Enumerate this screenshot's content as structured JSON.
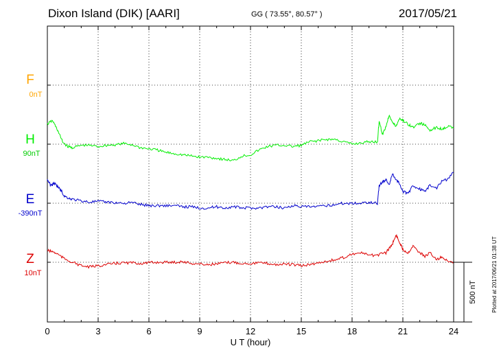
{
  "header": {
    "title": "Dixon Island (DIK)  [AARI]",
    "coords": "GG ( 73.55°,  80.57° )",
    "date": "2017/05/21"
  },
  "side_stamp": "Plotted at 2017/06/21 01:38 UT",
  "chart_data": {
    "type": "line",
    "xlabel": "U T (hour)",
    "xlim": [
      0,
      24
    ],
    "xticks": [
      "0",
      "3",
      "6",
      "9",
      "12",
      "15",
      "18",
      "21",
      "24"
    ],
    "scale_bar": "500 nT",
    "series": [
      {
        "name": "F",
        "baseline": "0nT",
        "color": "#ffa500",
        "x": [],
        "y": []
      },
      {
        "name": "H",
        "baseline": "90nT",
        "color": "#00ee00",
        "x": [
          0,
          0.3,
          0.6,
          0.9,
          1.2,
          1.5,
          2,
          2.5,
          3,
          3.5,
          4,
          4.5,
          5,
          5.5,
          6,
          6.5,
          7,
          7.5,
          8,
          8.5,
          9,
          9.5,
          10,
          10.5,
          11,
          11.5,
          12,
          12.5,
          13,
          13.5,
          14,
          14.5,
          15,
          15.5,
          16,
          16.5,
          17,
          17.5,
          18,
          18.5,
          19,
          19.5,
          19.6,
          19.8,
          20,
          20.2,
          20.4,
          20.6,
          20.8,
          21,
          21.3,
          21.6,
          22,
          22.3,
          22.6,
          23,
          23.3,
          23.6,
          24
        ],
        "y": [
          170,
          200,
          120,
          20,
          -20,
          -30,
          -10,
          -10,
          -20,
          -10,
          -5,
          5,
          -5,
          -30,
          -40,
          -50,
          -70,
          -80,
          -90,
          -100,
          -110,
          -110,
          -120,
          -130,
          -140,
          -100,
          -90,
          -50,
          -20,
          -10,
          -10,
          -20,
          -10,
          20,
          30,
          40,
          40,
          20,
          0,
          10,
          20,
          20,
          200,
          80,
          150,
          250,
          180,
          150,
          220,
          200,
          170,
          140,
          180,
          160,
          120,
          140,
          130,
          150,
          140
        ]
      },
      {
        "name": "E",
        "baseline": "-390nT",
        "color": "#0000cc",
        "x": [
          0,
          0.2,
          0.4,
          0.6,
          0.8,
          1,
          1.3,
          1.6,
          2,
          2.5,
          3,
          3.5,
          4,
          4.5,
          5,
          5.5,
          6,
          6.5,
          7,
          7.5,
          8,
          8.5,
          9,
          9.5,
          10,
          10.5,
          11,
          11.5,
          12,
          12.5,
          13,
          13.5,
          14,
          14.5,
          15,
          15.5,
          16,
          16.5,
          17,
          17.5,
          18,
          18.5,
          19,
          19.5,
          19.6,
          19.8,
          20,
          20.2,
          20.4,
          20.6,
          20.8,
          21,
          21.3,
          21.6,
          22,
          22.3,
          22.6,
          23,
          23.3,
          23.6,
          24
        ],
        "y": [
          200,
          150,
          170,
          140,
          110,
          60,
          40,
          30,
          20,
          10,
          15,
          10,
          5,
          0,
          5,
          -10,
          -20,
          -20,
          -20,
          -20,
          -30,
          -30,
          -40,
          -40,
          -30,
          -40,
          -30,
          -40,
          -40,
          -40,
          -30,
          -30,
          -40,
          -20,
          -30,
          -30,
          -30,
          -20,
          -10,
          0,
          0,
          0,
          10,
          0,
          150,
          180,
          200,
          160,
          250,
          200,
          170,
          100,
          80,
          150,
          120,
          100,
          150,
          130,
          190,
          200,
          260
        ]
      },
      {
        "name": "Z",
        "baseline": "10nT",
        "color": "#dd0000",
        "x": [
          0,
          0.3,
          0.6,
          1,
          1.5,
          2,
          2.5,
          3,
          3.5,
          4,
          4.5,
          5,
          5.5,
          6,
          6.5,
          7,
          7.5,
          8,
          8.5,
          9,
          9.5,
          10,
          10.5,
          11,
          11.5,
          12,
          12.5,
          13,
          13.5,
          14,
          14.5,
          15,
          15.5,
          16,
          16.5,
          17,
          17.5,
          18,
          18.5,
          19,
          19.5,
          20,
          20.2,
          20.4,
          20.6,
          20.8,
          21,
          21.3,
          21.6,
          22,
          22.3,
          22.6,
          23,
          23.3,
          23.6,
          24
        ],
        "y": [
          100,
          90,
          70,
          30,
          0,
          -30,
          -40,
          -30,
          -20,
          -10,
          -5,
          -5,
          -10,
          -5,
          0,
          0,
          0,
          5,
          -10,
          -15,
          -20,
          -15,
          -5,
          0,
          -10,
          -10,
          -5,
          -10,
          -20,
          -15,
          -20,
          -30,
          -20,
          -5,
          10,
          20,
          40,
          70,
          80,
          60,
          60,
          80,
          120,
          160,
          230,
          170,
          110,
          80,
          140,
          80,
          50,
          80,
          20,
          50,
          10,
          0
        ]
      }
    ]
  }
}
